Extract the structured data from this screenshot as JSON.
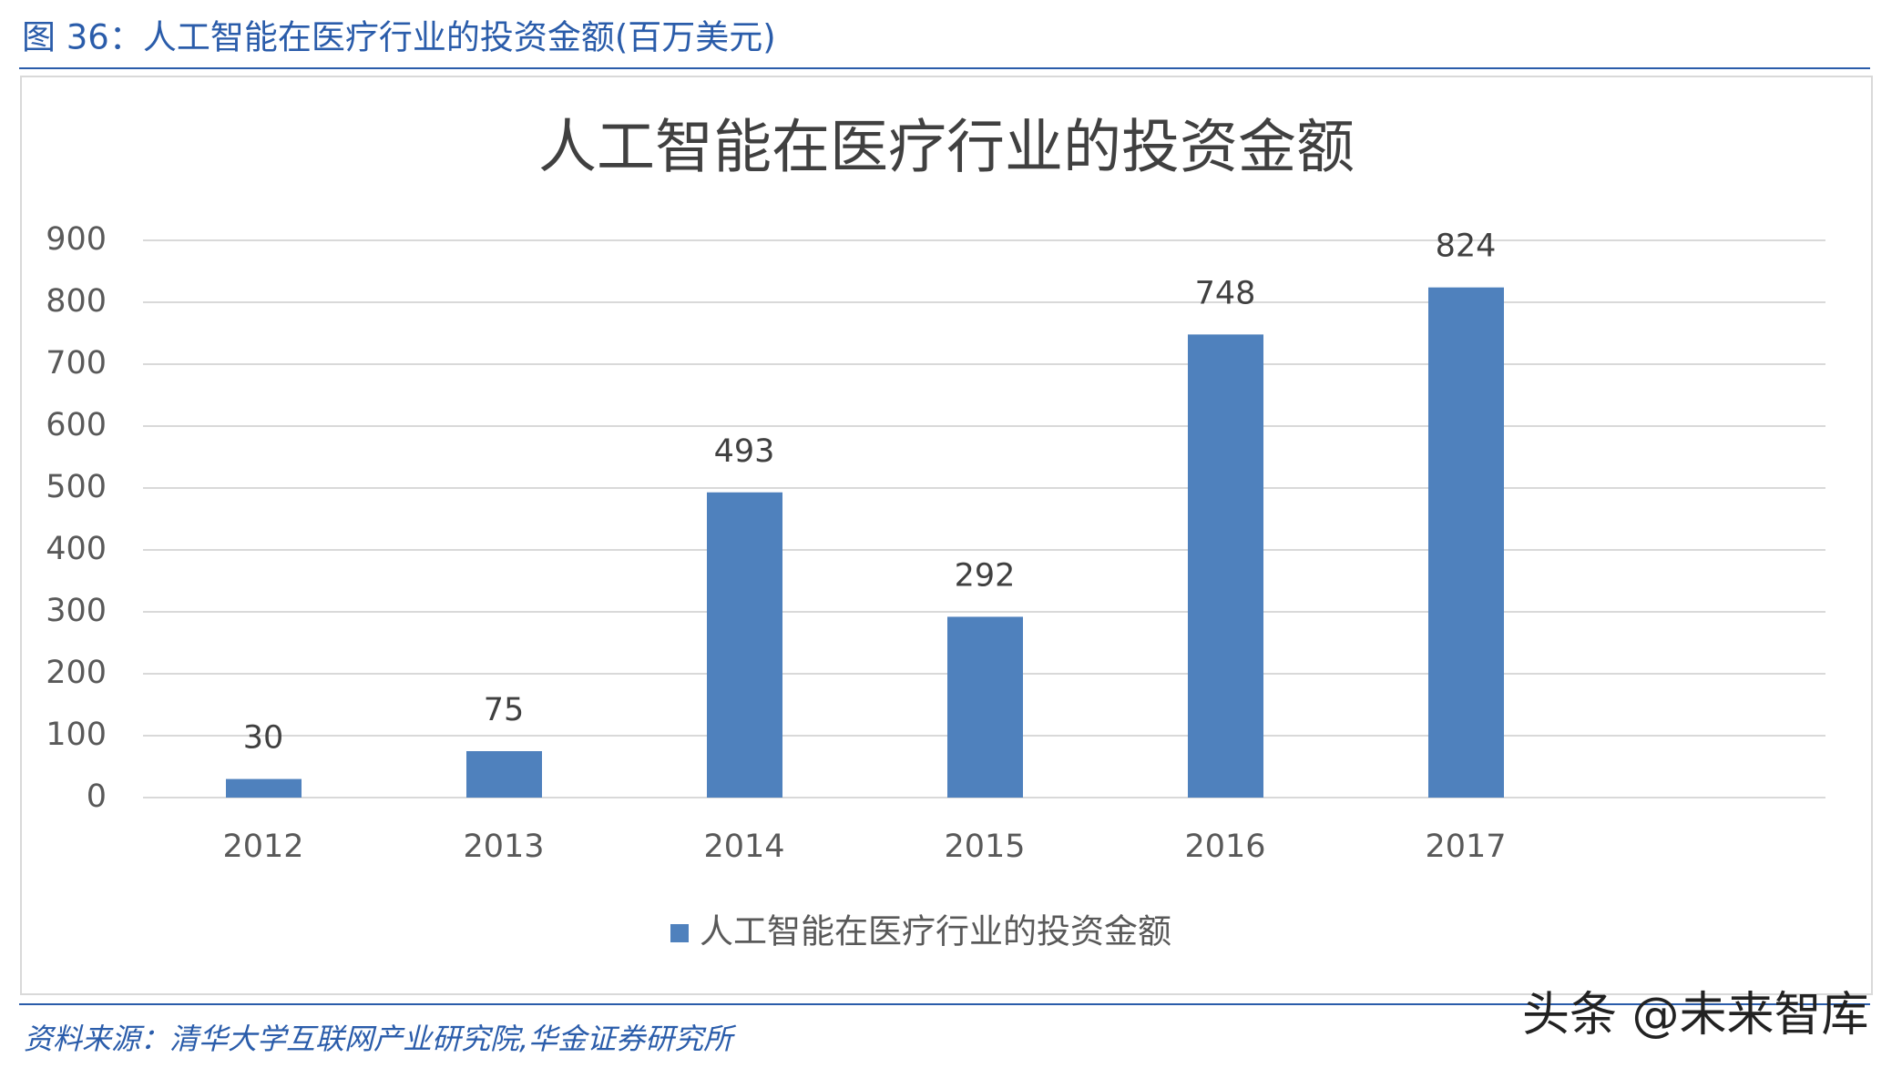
{
  "header": {
    "title": "图 36：人工智能在医疗行业的投资金额(百万美元)"
  },
  "chart_data": {
    "type": "bar",
    "title": "人工智能在医疗行业的投资金额",
    "categories": [
      "2012",
      "2013",
      "2014",
      "2015",
      "2016",
      "2017"
    ],
    "series": [
      {
        "name": "人工智能在医疗行业的投资金额",
        "color": "#4f81bd",
        "values": [
          30,
          75,
          493,
          292,
          748,
          824
        ]
      }
    ],
    "ylim": [
      0,
      900
    ],
    "yticks": [
      0,
      100,
      200,
      300,
      400,
      500,
      600,
      700,
      800,
      900
    ],
    "grid": true,
    "legend": "bottom"
  },
  "footer": {
    "source": "资料来源：清华大学互联网产业研究院,华金证券研究所",
    "watermark": "头条 @未来智库"
  }
}
